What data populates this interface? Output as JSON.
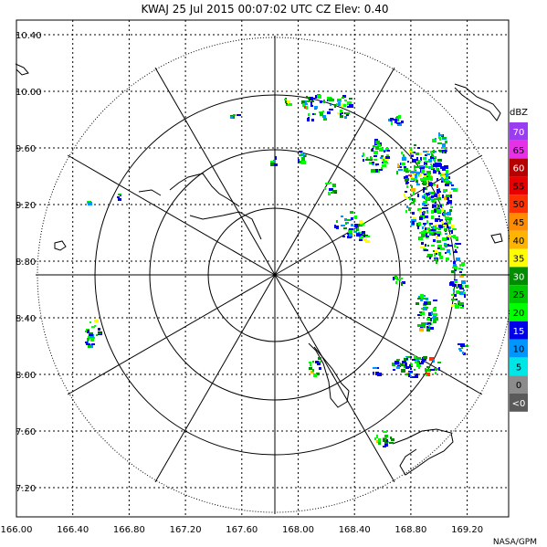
{
  "header": {
    "title": "KWAJ  25 Jul 2015  00:07:02 UTC   CZ   Elev: 0.40"
  },
  "axes": {
    "lon_labels": [
      "166.00",
      "166.40",
      "166.80",
      "167.20",
      "167.60",
      "168.00",
      "168.40",
      "168.80",
      "169.20"
    ],
    "lat_labels": [
      "10.40",
      "10.00",
      "9.60",
      "9.20",
      "8.80",
      "8.40",
      "8.00",
      "7.60",
      "7.20"
    ]
  },
  "legend": {
    "unit": "dBZ",
    "bins": [
      {
        "label": "70",
        "color": "#9a3cf0"
      },
      {
        "label": "65",
        "color": "#e632e6"
      },
      {
        "label": "60",
        "color": "#b40000"
      },
      {
        "label": "55",
        "color": "#e60000"
      },
      {
        "label": "50",
        "color": "#ff3000"
      },
      {
        "label": "45",
        "color": "#ff8c00"
      },
      {
        "label": "40",
        "color": "#ffb400"
      },
      {
        "label": "35",
        "color": "#ffff00"
      },
      {
        "label": "30",
        "color": "#008c00"
      },
      {
        "label": "25",
        "color": "#00c800"
      },
      {
        "label": "20",
        "color": "#00ff00"
      },
      {
        "label": "15",
        "color": "#0000e6"
      },
      {
        "label": "10",
        "color": "#0096ff"
      },
      {
        "label": "5",
        "color": "#00e6e6"
      },
      {
        "label": "0",
        "color": "#8c8c8c"
      },
      {
        "label": "<0",
        "color": "#5a5a5a"
      }
    ]
  },
  "credit": "NASA/GPM"
}
